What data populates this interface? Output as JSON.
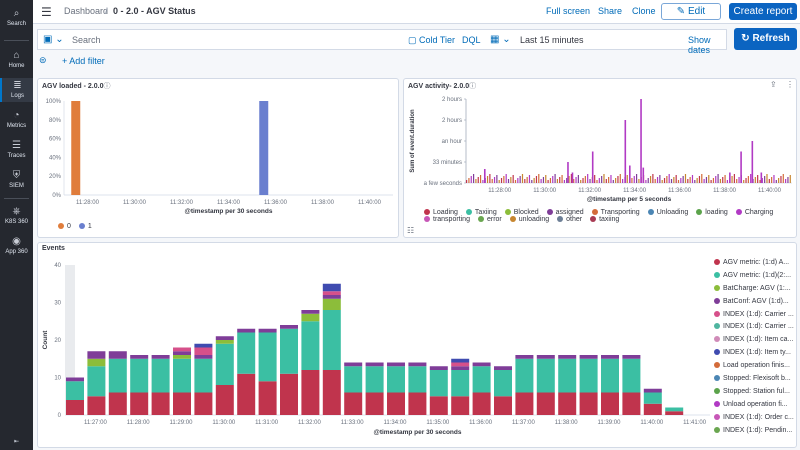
{
  "nav": {
    "items": [
      {
        "label": "Search",
        "icon": "search-icon",
        "glyph": "⌕"
      },
      {
        "label": "Home",
        "icon": "home-icon",
        "glyph": "⌂"
      },
      {
        "label": "Logs",
        "icon": "logs-icon",
        "glyph": "≣"
      },
      {
        "label": "Metrics",
        "icon": "metrics-icon",
        "glyph": "◔"
      },
      {
        "label": "Traces",
        "icon": "traces-icon",
        "glyph": "☰"
      },
      {
        "label": "SIEM",
        "icon": "siem-icon",
        "glyph": "⛨"
      },
      {
        "label": "K8S 360",
        "icon": "k8s-icon",
        "glyph": "⎈"
      },
      {
        "label": "App 360",
        "icon": "app360-icon",
        "glyph": "◉"
      }
    ],
    "bottom_glyph": "⇤"
  },
  "header": {
    "breadcrumb_root": "Dashboard",
    "breadcrumb_sep": "/",
    "title": "0 - 2.0 - AGV Status",
    "links": [
      "Full screen",
      "Share",
      "Clone"
    ],
    "edit_label": "Edit",
    "edit_glyph": "✎",
    "report_label": "Create report",
    "menu_glyph": "☰"
  },
  "query": {
    "placeholder": "Search",
    "save_glyph": "▣ ⌄",
    "tier_label": "Cold Tier",
    "tier_glyph": "▢",
    "language": "DQL",
    "calendar_glyph": "▦ ⌄",
    "time_range": "Last 15 minutes",
    "show_dates": "Show dates",
    "refresh_label": "Refresh",
    "refresh_glyph": "↻"
  },
  "filters": {
    "add_label": "+ Add filter",
    "filter_glyph": "⊜"
  },
  "panels": {
    "agv_loaded": {
      "title": "AGV loaded - 2.0.0",
      "info": "ⓘ",
      "xlabel": "@timestamp per 30 seconds",
      "yticks": [
        "100%",
        "80%",
        "60%",
        "40%",
        "20%",
        "0%"
      ],
      "xticks": [
        "11:28:00",
        "11:30:00",
        "11:32:00",
        "11:34:00",
        "11:36:00",
        "11:38:00",
        "11:40:00"
      ],
      "legend": [
        {
          "name": "0",
          "color": "#e07d3c"
        },
        {
          "name": "1",
          "color": "#6a7fcf"
        }
      ]
    },
    "agv_activity": {
      "title": "AGV activity- 2.0.0",
      "info": "ⓘ",
      "ylabel": "Sum of event.duration",
      "xlabel": "@timestamp per 5 seconds",
      "yticks": [
        "2 hours",
        "2 hours",
        "an hour",
        "33 minutes",
        "a few seconds"
      ],
      "xticks": [
        "11:28:00",
        "11:30:00",
        "11:32:00",
        "11:34:00",
        "11:36:00",
        "11:38:00",
        "11:40:00"
      ],
      "legend": [
        {
          "name": "Loading",
          "color": "#c0344d"
        },
        {
          "name": "Taxiing",
          "color": "#3bbfa3"
        },
        {
          "name": "Blocked",
          "color": "#8cbd3a"
        },
        {
          "name": "assigned",
          "color": "#7f3d98"
        },
        {
          "name": "Transporting",
          "color": "#d36b3a"
        },
        {
          "name": "Unloading",
          "color": "#4b86b4"
        },
        {
          "name": "loading",
          "color": "#5ba34b"
        },
        {
          "name": "Charging",
          "color": "#b13ac4"
        },
        {
          "name": "transporting",
          "color": "#c757b7"
        },
        {
          "name": "error",
          "color": "#6aa650"
        },
        {
          "name": "unloading",
          "color": "#c7862f"
        },
        {
          "name": "other",
          "color": "#6d7f96"
        },
        {
          "name": "taxiing",
          "color": "#a83a53"
        }
      ],
      "toolbar_glyphs": [
        "⇪",
        "⋮"
      ],
      "list_glyph": "☷"
    },
    "events": {
      "title": "Events",
      "ylabel": "Count",
      "xlabel": "@timestamp per 30 seconds",
      "yticks": [
        "40",
        "30",
        "20",
        "10",
        "0"
      ],
      "xticks": [
        "11:27:00",
        "11:28:00",
        "11:29:00",
        "11:30:00",
        "11:31:00",
        "11:32:00",
        "11:33:00",
        "11:34:00",
        "11:35:00",
        "11:36:00",
        "11:37:00",
        "11:38:00",
        "11:39:00",
        "11:40:00",
        "11:41:00"
      ],
      "legend": [
        {
          "name": "AGV metric: (1:d) A...",
          "color": "#c0344d"
        },
        {
          "name": "AGV metric: (1:d)(2:...",
          "color": "#3bbfa3"
        },
        {
          "name": "BatCharge: AGV (1:...",
          "color": "#8cbd3a"
        },
        {
          "name": "BatConf: AGV (1:d)...",
          "color": "#7f3d98"
        },
        {
          "name": "INDEX (1:d): Carrier ...",
          "color": "#d6508a"
        },
        {
          "name": "INDEX (1:d): Carrier ...",
          "color": "#4fb5a0"
        },
        {
          "name": "INDEX (1:d): Item ca...",
          "color": "#d08bb8"
        },
        {
          "name": "INDEX (1:d): Item ty...",
          "color": "#3f4bb0"
        },
        {
          "name": "Load operation finis...",
          "color": "#d36b3a"
        },
        {
          "name": "Stopped: Flexisoft b...",
          "color": "#4b86b4"
        },
        {
          "name": "Stopped: Station ful...",
          "color": "#5ba34b"
        },
        {
          "name": "Unload operation fi...",
          "color": "#b13ac4"
        },
        {
          "name": "INDEX (1:d): Order c...",
          "color": "#c757b7"
        },
        {
          "name": "INDEX (1:d): Pendin...",
          "color": "#6aa650"
        }
      ]
    }
  },
  "chart_data": [
    {
      "type": "bar",
      "title": "AGV loaded - 2.0.0",
      "xlabel": "@timestamp per 30 seconds",
      "ylabel": "",
      "ylim": [
        0,
        100
      ],
      "x": [
        "11:27:30",
        "11:35:30"
      ],
      "series": [
        {
          "name": "0",
          "values": [
            100,
            0
          ]
        },
        {
          "name": "1",
          "values": [
            0,
            100
          ]
        }
      ]
    },
    {
      "type": "bar",
      "title": "AGV activity- 2.0.0",
      "xlabel": "@timestamp per 5 seconds",
      "ylabel": "Sum of event.duration",
      "x_minutes_from_1128": [
        -0.7,
        3.0,
        3.2,
        4.1,
        5.55,
        5.75,
        6.25,
        6.35,
        10.2,
        10.7,
        11.2,
        11.6
      ],
      "series": [
        {
          "name": "Charging",
          "values_minutes": [
            20,
            30,
            15,
            45,
            90,
            25,
            120,
            22,
            15,
            45,
            60,
            15
          ]
        }
      ]
    },
    {
      "type": "bar",
      "title": "Events",
      "xlabel": "@timestamp per 30 seconds",
      "ylabel": "Count",
      "ylim": [
        0,
        40
      ],
      "categories": [
        "11:26:30",
        "11:27:00",
        "11:27:30",
        "11:28:00",
        "11:28:30",
        "11:29:00",
        "11:29:30",
        "11:30:00",
        "11:30:30",
        "11:31:00",
        "11:31:30",
        "11:32:00",
        "11:32:30",
        "11:33:00",
        "11:33:30",
        "11:34:00",
        "11:34:30",
        "11:35:00",
        "11:35:30",
        "11:36:00",
        "11:36:30",
        "11:37:00",
        "11:37:30",
        "11:38:00",
        "11:38:30",
        "11:39:00",
        "11:39:30",
        "11:40:00",
        "11:40:30"
      ],
      "series": [
        {
          "name": "AGV metric: (1:d) A...",
          "values": [
            4,
            5,
            6,
            6,
            6,
            6,
            6,
            8,
            11,
            9,
            11,
            12,
            12,
            6,
            6,
            6,
            6,
            5,
            5,
            6,
            5,
            6,
            6,
            6,
            6,
            6,
            6,
            3,
            1
          ]
        },
        {
          "name": "AGV metric: (1:d)(2:...",
          "values": [
            5,
            8,
            9,
            9,
            9,
            9,
            9,
            11,
            11,
            13,
            12,
            13,
            16,
            7,
            7,
            7,
            7,
            7,
            7,
            7,
            7,
            9,
            9,
            9,
            9,
            9,
            9,
            3,
            1
          ]
        },
        {
          "name": "BatCharge: AGV (1:...",
          "values": [
            0,
            2,
            0,
            0,
            0,
            1,
            0,
            1,
            0,
            0,
            0,
            2,
            3,
            0,
            0,
            0,
            0,
            0,
            0,
            0,
            0,
            0,
            0,
            0,
            0,
            0,
            0,
            0,
            0
          ]
        },
        {
          "name": "BatConf: AGV (1:d)...",
          "values": [
            1,
            2,
            2,
            1,
            1,
            1,
            1,
            1,
            1,
            1,
            1,
            1,
            1,
            1,
            1,
            1,
            1,
            1,
            1,
            1,
            1,
            1,
            1,
            1,
            1,
            1,
            1,
            1,
            0
          ]
        },
        {
          "name": "INDEX (1:d): Carrier ...",
          "values": [
            0,
            0,
            0,
            0,
            0,
            1,
            2,
            0,
            0,
            0,
            0,
            0,
            1,
            0,
            0,
            0,
            0,
            0,
            1,
            0,
            0,
            0,
            0,
            0,
            0,
            0,
            0,
            0,
            0
          ]
        },
        {
          "name": "INDEX (1:d): Item ty...",
          "values": [
            0,
            0,
            0,
            0,
            0,
            0,
            1,
            0,
            0,
            0,
            0,
            0,
            2,
            0,
            0,
            0,
            0,
            0,
            1,
            0,
            0,
            0,
            0,
            0,
            0,
            0,
            0,
            0,
            0
          ]
        }
      ]
    }
  ]
}
